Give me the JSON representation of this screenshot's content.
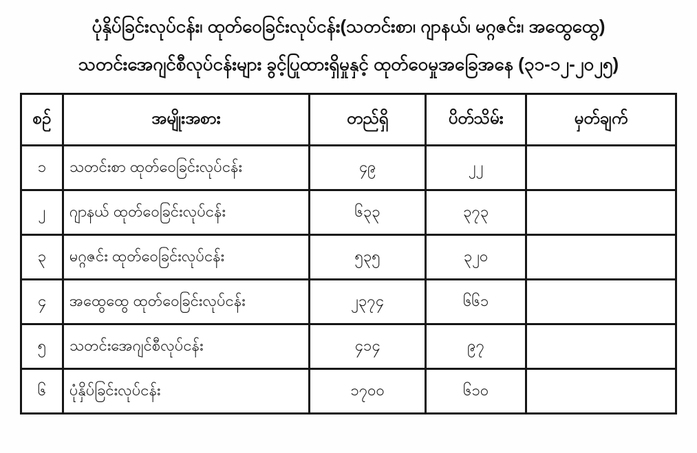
{
  "title": {
    "line1": "ပုံနှိပ်ခြင်းလုပ်ငန်း၊ ထုတ်ဝေခြင်းလုပ်ငန်း(သတင်းစာ၊ ဂျာနယ်၊ မဂ္ဂဇင်း၊ အထွေထွေ)",
    "line2": "သတင်းအေဂျင်စီလုပ်ငန်းများ ခွင့်ပြုထားရှိမှုနှင့် ထုတ်ဝေမှုအခြေအနေ (၃၁-၁၂-၂၀၂၅)"
  },
  "table": {
    "headers": {
      "no": "စဉ်",
      "category": "အမျိုးအစား",
      "existing": "တည်ရှိ",
      "closed": "ပိတ်သိမ်း",
      "remark": "မှတ်ချက်"
    },
    "rows": [
      {
        "no": "၁",
        "category": "သတင်းစာ ထုတ်ဝေခြင်းလုပ်ငန်း",
        "existing": "၄၉",
        "closed": "၂၂",
        "remark": ""
      },
      {
        "no": "၂",
        "category": "ဂျာနယ် ထုတ်ဝေခြင်းလုပ်ငန်း",
        "existing": "၆၃၃",
        "closed": "၃၇၃",
        "remark": ""
      },
      {
        "no": "၃",
        "category": "မဂ္ဂဇင်း ထုတ်ဝေခြင်းလုပ်ငန်း",
        "existing": "၅၃၅",
        "closed": "၃၂၀",
        "remark": ""
      },
      {
        "no": "၄",
        "category": "အထွေထွေ ထုတ်ဝေခြင်းလုပ်ငန်း",
        "existing": "၂၃၇၄",
        "closed": "၆၆၁",
        "remark": ""
      },
      {
        "no": "၅",
        "category": "သတင်းအေဂျင်စီလုပ်ငန်း",
        "existing": "၄၁၄",
        "closed": "၉၇",
        "remark": ""
      },
      {
        "no": "၆",
        "category": "ပုံနှိပ်ခြင်းလုပ်ငန်း",
        "existing": "၁၇၀၀",
        "closed": "၆၁၀",
        "remark": ""
      }
    ],
    "numbers_arabic_equivalent": {
      "rows": [
        {
          "no": 1,
          "existing": 49,
          "closed": 22
        },
        {
          "no": 2,
          "existing": 633,
          "closed": 373
        },
        {
          "no": 3,
          "existing": 535,
          "closed": 320
        },
        {
          "no": 4,
          "existing": 2374,
          "closed": 661
        },
        {
          "no": 5,
          "existing": 414,
          "closed": 97
        },
        {
          "no": 6,
          "existing": 1700,
          "closed": 610
        }
      ],
      "date_in_title": "31-12-2025"
    },
    "colors": {
      "ink": "#161616",
      "paper": "#ffffff"
    }
  }
}
